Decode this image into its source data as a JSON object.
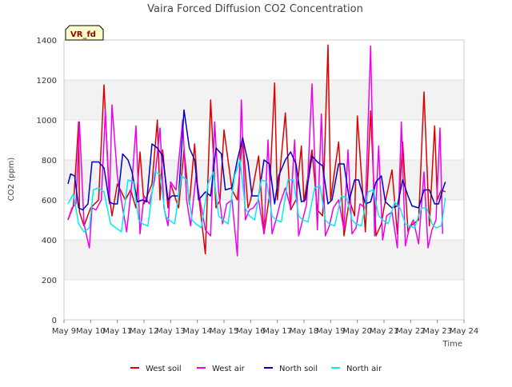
{
  "chart_data": {
    "type": "line",
    "title": "Vaira Forced Diffusion CO2 Concentration",
    "xlabel": "Time",
    "ylabel": "CO2 (ppm)",
    "badge": "VR_fd",
    "xlim": [
      9,
      24
    ],
    "ylim": [
      0,
      1400
    ],
    "x_ticks": [
      "May 9",
      "May 10",
      "May 11",
      "May 12",
      "May 13",
      "May 14",
      "May 15",
      "May 16",
      "May 17",
      "May 18",
      "May 19",
      "May 20",
      "May 21",
      "May 22",
      "May 23",
      "May 24"
    ],
    "y_ticks": [
      0,
      200,
      400,
      600,
      800,
      1000,
      1200,
      1400
    ],
    "grid": "horizontal banded",
    "legend_position": "bottom",
    "series": [
      {
        "name": "West soil",
        "color": "#dd0000",
        "x": [
          9.15,
          9.35,
          9.55,
          9.58,
          9.75,
          10.0,
          10.3,
          10.5,
          10.7,
          10.8,
          11.0,
          11.3,
          11.5,
          11.7,
          11.85,
          12.0,
          12.3,
          12.5,
          12.6,
          12.7,
          12.9,
          13.0,
          13.3,
          13.5,
          13.7,
          13.9,
          14.0,
          14.3,
          14.5,
          14.7,
          14.85,
          15.0,
          15.3,
          15.5,
          15.7,
          15.9,
          16.0,
          16.3,
          16.5,
          16.7,
          16.9,
          17.0,
          17.3,
          17.5,
          17.7,
          17.9,
          18.0,
          18.3,
          18.5,
          18.7,
          18.9,
          19.0,
          19.3,
          19.5,
          19.7,
          19.9,
          20.0,
          20.3,
          20.5,
          20.7,
          20.9,
          21.0,
          21.3,
          21.5,
          21.7,
          21.9,
          22.0,
          22.3,
          22.5,
          22.7,
          22.9,
          23.0,
          23.15,
          23.3
        ],
        "values": [
          500,
          570,
          990,
          540,
          470,
          560,
          600,
          1175,
          620,
          520,
          680,
          600,
          650,
          560,
          840,
          580,
          680,
          1000,
          600,
          850,
          560,
          680,
          560,
          850,
          580,
          880,
          680,
          330,
          1100,
          560,
          600,
          950,
          650,
          600,
          920,
          560,
          600,
          820,
          430,
          620,
          1185,
          600,
          1035,
          550,
          600,
          870,
          590,
          850,
          550,
          520,
          1375,
          600,
          890,
          420,
          600,
          520,
          1020,
          440,
          1045,
          420,
          480,
          560,
          750,
          430,
          890,
          440,
          470,
          500,
          1140,
          470,
          970,
          600,
          650,
          640
        ]
      },
      {
        "name": "West air",
        "color": "#ee00ee",
        "x": [
          9.15,
          9.3,
          9.45,
          9.58,
          9.75,
          9.95,
          10.05,
          10.2,
          10.4,
          10.55,
          10.7,
          10.8,
          11.0,
          11.2,
          11.35,
          11.55,
          11.7,
          11.85,
          12.0,
          12.2,
          12.4,
          12.6,
          12.75,
          12.9,
          13.0,
          13.2,
          13.45,
          13.6,
          13.75,
          13.95,
          14.1,
          14.3,
          14.5,
          14.65,
          14.8,
          14.95,
          15.1,
          15.3,
          15.5,
          15.65,
          15.8,
          15.95,
          16.1,
          16.3,
          16.5,
          16.65,
          16.8,
          16.95,
          17.1,
          17.3,
          17.5,
          17.65,
          17.8,
          17.95,
          18.1,
          18.3,
          18.5,
          18.65,
          18.8,
          18.95,
          19.1,
          19.3,
          19.5,
          19.65,
          19.8,
          19.95,
          20.1,
          20.3,
          20.5,
          20.65,
          20.8,
          20.95,
          21.1,
          21.3,
          21.5,
          21.65,
          21.8,
          21.95,
          22.1,
          22.3,
          22.5,
          22.65,
          22.8,
          22.95,
          23.1,
          23.2
        ],
        "values": [
          500,
          560,
          580,
          990,
          480,
          360,
          560,
          550,
          600,
          1050,
          580,
          1075,
          720,
          560,
          440,
          690,
          970,
          430,
          620,
          580,
          700,
          960,
          560,
          470,
          690,
          650,
          1000,
          600,
          470,
          720,
          600,
          450,
          420,
          990,
          640,
          480,
          580,
          600,
          320,
          1100,
          500,
          550,
          560,
          600,
          430,
          900,
          430,
          500,
          580,
          660,
          560,
          900,
          420,
          500,
          580,
          1180,
          450,
          1030,
          420,
          470,
          560,
          600,
          450,
          850,
          430,
          460,
          580,
          560,
          1370,
          420,
          870,
          400,
          520,
          540,
          360,
          990,
          370,
          460,
          500,
          380,
          740,
          360,
          450,
          500,
          960,
          430
        ]
      },
      {
        "name": "North soil",
        "color": "#0000cc",
        "x": [
          9.15,
          9.25,
          9.4,
          9.55,
          9.7,
          9.9,
          10.05,
          10.3,
          10.5,
          10.7,
          10.85,
          11.0,
          11.2,
          11.4,
          11.55,
          11.75,
          11.95,
          12.1,
          12.3,
          12.5,
          12.7,
          12.9,
          13.05,
          13.3,
          13.5,
          13.7,
          13.9,
          14.05,
          14.3,
          14.5,
          14.7,
          14.9,
          15.05,
          15.3,
          15.5,
          15.7,
          15.9,
          16.05,
          16.3,
          16.5,
          16.7,
          16.9,
          17.05,
          17.3,
          17.5,
          17.7,
          17.9,
          18.05,
          18.3,
          18.5,
          18.7,
          18.9,
          19.05,
          19.3,
          19.5,
          19.7,
          19.9,
          20.05,
          20.3,
          20.5,
          20.7,
          20.9,
          21.05,
          21.3,
          21.5,
          21.7,
          21.9,
          22.05,
          22.3,
          22.5,
          22.7,
          22.9,
          23.05,
          23.2,
          23.3
        ],
        "values": [
          680,
          730,
          720,
          560,
          550,
          580,
          790,
          790,
          760,
          590,
          580,
          580,
          830,
          800,
          740,
          590,
          600,
          590,
          880,
          860,
          820,
          600,
          620,
          620,
          1050,
          860,
          800,
          600,
          640,
          620,
          860,
          830,
          650,
          660,
          800,
          910,
          790,
          620,
          620,
          800,
          780,
          580,
          720,
          800,
          840,
          780,
          590,
          600,
          820,
          790,
          770,
          580,
          600,
          780,
          780,
          600,
          700,
          700,
          580,
          590,
          690,
          720,
          590,
          560,
          570,
          700,
          620,
          570,
          560,
          650,
          650,
          580,
          580,
          650,
          690
        ]
      },
      {
        "name": "North air",
        "color": "#00eeee",
        "x": [
          9.15,
          9.35,
          9.55,
          9.75,
          9.95,
          10.1,
          10.3,
          10.5,
          10.75,
          10.95,
          11.15,
          11.4,
          11.6,
          11.8,
          11.95,
          12.15,
          12.4,
          12.6,
          12.8,
          12.95,
          13.15,
          13.4,
          13.6,
          13.8,
          13.95,
          14.15,
          14.4,
          14.6,
          14.8,
          14.95,
          15.15,
          15.4,
          15.6,
          15.8,
          15.95,
          16.15,
          16.4,
          16.6,
          16.8,
          16.95,
          17.15,
          17.4,
          17.6,
          17.8,
          17.95,
          18.15,
          18.4,
          18.6,
          18.8,
          18.95,
          19.15,
          19.4,
          19.6,
          19.8,
          19.95,
          20.15,
          20.4,
          20.6,
          20.8,
          20.95,
          21.15,
          21.4,
          21.6,
          21.8,
          21.95,
          22.15,
          22.4,
          22.6,
          22.8,
          22.95,
          23.15,
          23.3
        ],
        "values": [
          580,
          630,
          480,
          440,
          460,
          650,
          660,
          640,
          480,
          460,
          440,
          700,
          690,
          500,
          480,
          470,
          740,
          730,
          520,
          500,
          480,
          720,
          700,
          500,
          480,
          460,
          680,
          740,
          520,
          500,
          480,
          720,
          800,
          560,
          520,
          500,
          700,
          690,
          520,
          500,
          490,
          700,
          700,
          520,
          500,
          490,
          660,
          670,
          500,
          480,
          470,
          620,
          610,
          500,
          480,
          470,
          640,
          650,
          520,
          500,
          480,
          590,
          560,
          480,
          470,
          460,
          560,
          560,
          480,
          460,
          470,
          610
        ]
      }
    ]
  }
}
